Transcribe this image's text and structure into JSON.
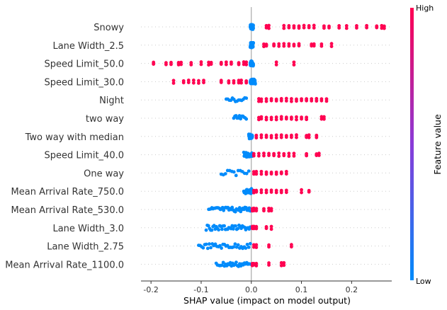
{
  "chart_data": {
    "type": "scatter",
    "subtype": "shap-beeswarm-summary",
    "xlabel": "SHAP value (impact on model output)",
    "xlim": [
      -0.22,
      0.28
    ],
    "xticks": [
      "-0.2",
      "-0.1",
      "0.0",
      "0.1",
      "0.2"
    ],
    "xtick_values": [
      -0.2,
      -0.1,
      0.0,
      0.1,
      0.2
    ],
    "colorbar": {
      "label": "Feature value",
      "high_label": "High",
      "low_label": "Low",
      "high_color": "#ff0051",
      "low_color": "#008bfb"
    },
    "features": [
      {
        "name": "Snowy",
        "low": {
          "min": -0.002,
          "max": 0.004,
          "n": 40
        },
        "high": [
          0.03,
          0.035,
          0.065,
          0.075,
          0.085,
          0.095,
          0.105,
          0.115,
          0.125,
          0.145,
          0.155,
          0.175,
          0.19,
          0.21,
          0.23,
          0.25,
          0.26,
          0.265
        ]
      },
      {
        "name": "Lane Width_2.5",
        "low": {
          "min": -0.002,
          "max": 0.004,
          "n": 40
        },
        "high": [
          0.025,
          0.03,
          0.045,
          0.055,
          0.065,
          0.075,
          0.085,
          0.095,
          0.12,
          0.125,
          0.14,
          0.16
        ]
      },
      {
        "name": "Speed Limit_50.0",
        "low": {
          "min": -0.002,
          "max": 0.004,
          "n": 40
        },
        "high": [
          -0.195,
          -0.17,
          -0.16,
          -0.145,
          -0.14,
          -0.12,
          -0.1,
          -0.085,
          -0.08,
          -0.06,
          -0.05,
          -0.04,
          -0.025,
          -0.015,
          -0.01,
          0.05,
          0.085
        ]
      },
      {
        "name": "Speed Limit_30.0",
        "low": {
          "min": -0.002,
          "max": 0.008,
          "n": 40
        },
        "high": [
          -0.155,
          -0.135,
          -0.125,
          -0.115,
          -0.105,
          -0.095,
          -0.06,
          -0.045,
          -0.035,
          -0.025,
          -0.02,
          -0.01
        ]
      },
      {
        "name": "Night",
        "low": {
          "min": -0.05,
          "max": -0.01,
          "n": 14
        },
        "high": [
          0.015,
          0.02,
          0.03,
          0.04,
          0.05,
          0.06,
          0.07,
          0.08,
          0.09,
          0.1,
          0.11,
          0.12,
          0.13,
          0.14,
          0.15
        ]
      },
      {
        "name": "two way",
        "low": {
          "min": -0.035,
          "max": -0.01,
          "n": 12
        },
        "high": [
          0.015,
          0.02,
          0.03,
          0.04,
          0.05,
          0.06,
          0.07,
          0.08,
          0.09,
          0.1,
          0.11,
          0.14,
          0.145
        ]
      },
      {
        "name": "Two way with median",
        "low": {
          "min": -0.005,
          "max": 0.002,
          "n": 30
        },
        "high": [
          0.01,
          0.02,
          0.03,
          0.04,
          0.05,
          0.06,
          0.07,
          0.08,
          0.09,
          0.11,
          0.115,
          0.13
        ]
      },
      {
        "name": "Speed Limit_40.0",
        "low": {
          "min": -0.015,
          "max": 0.002,
          "n": 20
        },
        "high": [
          0.005,
          0.015,
          0.025,
          0.035,
          0.045,
          0.055,
          0.065,
          0.075,
          0.085,
          0.11,
          0.13,
          0.135
        ]
      },
      {
        "name": "One way",
        "low": {
          "min": -0.06,
          "max": -0.005,
          "n": 14
        },
        "high": [
          0.005,
          0.01,
          0.02,
          0.03,
          0.04,
          0.05,
          0.06,
          0.07
        ]
      },
      {
        "name": "Mean Arrival Rate_750.0",
        "low": {
          "min": -0.015,
          "max": 0.002,
          "n": 20
        },
        "high": [
          0.005,
          0.01,
          0.02,
          0.03,
          0.04,
          0.05,
          0.06,
          0.07,
          0.1,
          0.115
        ]
      },
      {
        "name": "Mean Arrival Rate_530.0",
        "low": {
          "min": -0.085,
          "max": -0.002,
          "n": 40
        },
        "high": [
          0.002,
          0.005,
          0.01,
          0.025,
          0.035,
          0.04
        ]
      },
      {
        "name": "Lane Width_3.0",
        "low": {
          "min": -0.09,
          "max": -0.002,
          "n": 40
        },
        "high": [
          0.002,
          0.005,
          0.01,
          0.03,
          0.04
        ]
      },
      {
        "name": "Lane Width_2.75",
        "low": {
          "min": -0.105,
          "max": -0.002,
          "n": 35
        },
        "high": [
          0.005,
          0.01,
          0.035,
          0.08
        ]
      },
      {
        "name": "Mean Arrival Rate_1100.0",
        "low": {
          "min": -0.07,
          "max": -0.002,
          "n": 30
        },
        "high": [
          0.002,
          0.005,
          0.01,
          0.035,
          0.06,
          0.065
        ]
      }
    ]
  }
}
